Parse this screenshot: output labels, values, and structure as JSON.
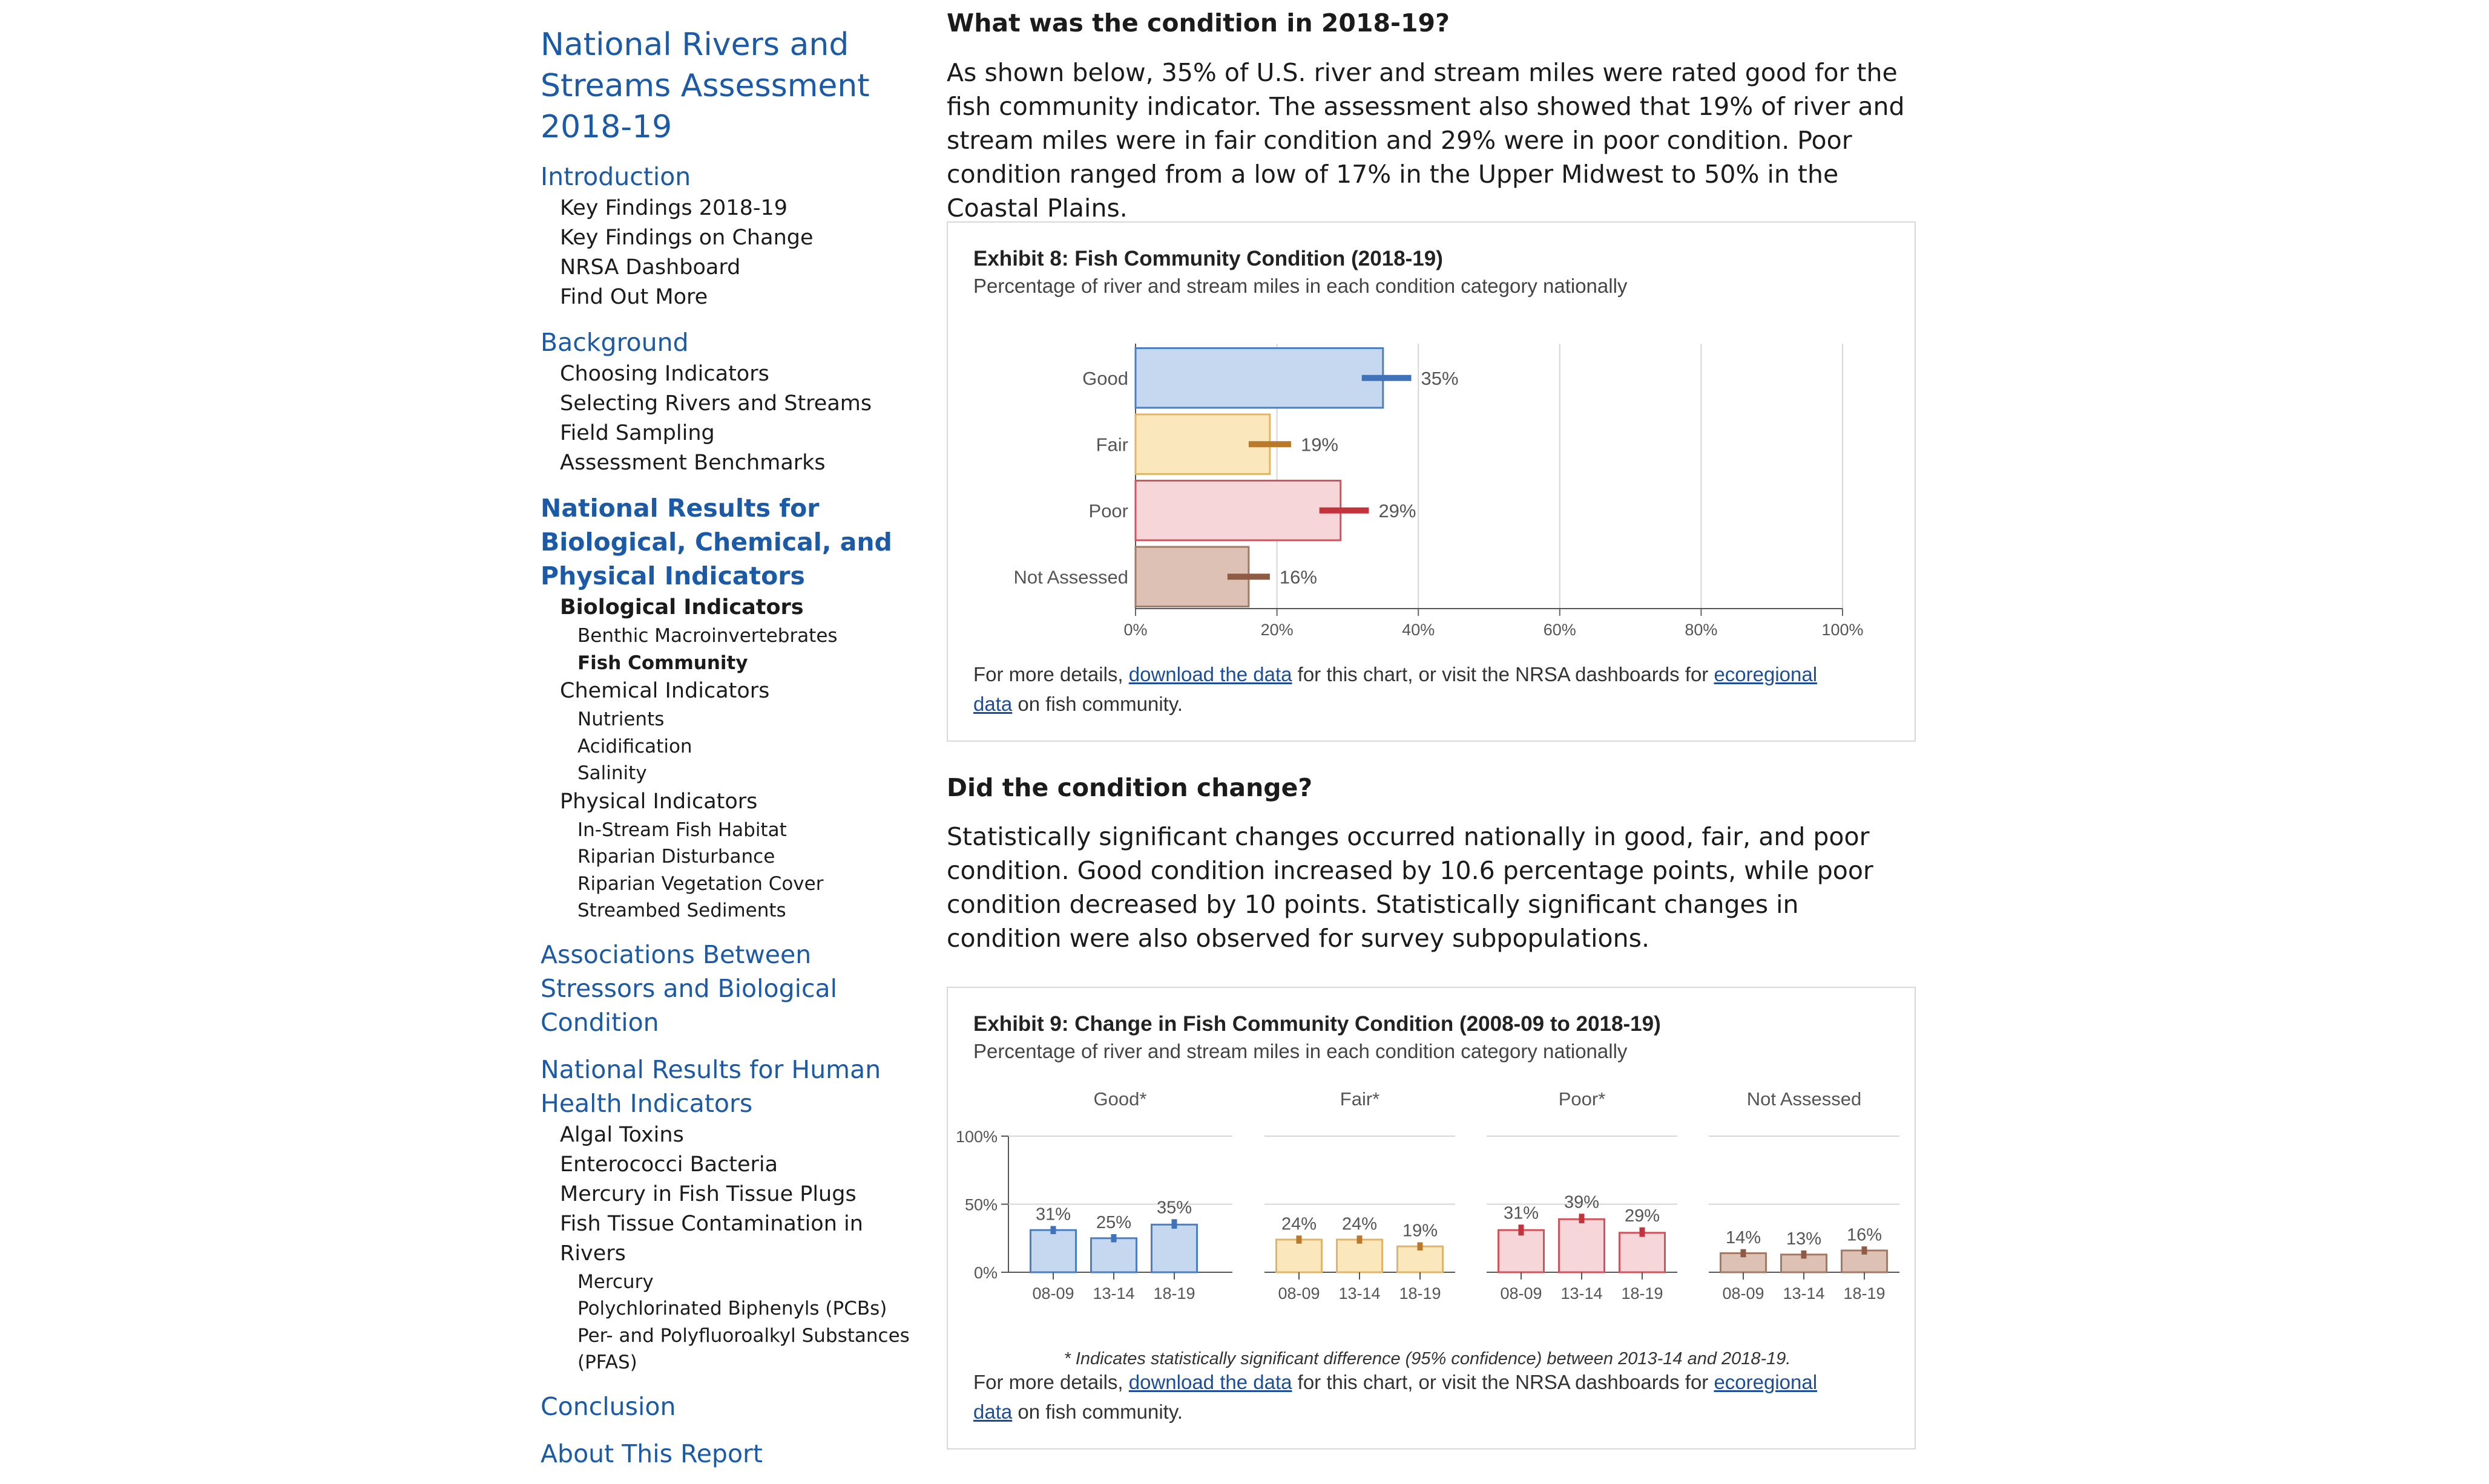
{
  "sidebar": {
    "site_title": "National Rivers and Streams Assessment 2018-19",
    "sections": [
      {
        "label": "Introduction",
        "active": false,
        "items": [
          {
            "label": "Key Findings 2018-19",
            "level": 1
          },
          {
            "label": "Key Findings on Change",
            "level": 1
          },
          {
            "label": "NRSA Dashboard",
            "level": 1
          },
          {
            "label": "Find Out More",
            "level": 1
          }
        ]
      },
      {
        "label": "Background",
        "active": false,
        "items": [
          {
            "label": "Choosing Indicators",
            "level": 1
          },
          {
            "label": "Selecting Rivers and Streams",
            "level": 1
          },
          {
            "label": "Field Sampling",
            "level": 1
          },
          {
            "label": "Assessment Benchmarks",
            "level": 1
          }
        ]
      },
      {
        "label": "National Results for Biological, Chemical, and Physical Indicators",
        "active": true,
        "items": [
          {
            "label": "Biological Indicators",
            "level": 1,
            "active": true
          },
          {
            "label": "Benthic Macroinvertebrates",
            "level": 2
          },
          {
            "label": "Fish Community",
            "level": 2,
            "active": true
          },
          {
            "label": "Chemical Indicators",
            "level": 1
          },
          {
            "label": "Nutrients",
            "level": 2
          },
          {
            "label": "Acidification",
            "level": 2
          },
          {
            "label": "Salinity",
            "level": 2
          },
          {
            "label": "Physical Indicators",
            "level": 1
          },
          {
            "label": "In-Stream Fish Habitat",
            "level": 2
          },
          {
            "label": "Riparian Disturbance",
            "level": 2
          },
          {
            "label": "Riparian Vegetation Cover",
            "level": 2
          },
          {
            "label": "Streambed Sediments",
            "level": 2
          }
        ]
      },
      {
        "label": "Associations Between Stressors and Biological Condition",
        "active": false,
        "items": []
      },
      {
        "label": "National Results for Human Health Indicators",
        "active": false,
        "items": [
          {
            "label": "Algal Toxins",
            "level": 1
          },
          {
            "label": "Enterococci Bacteria",
            "level": 1
          },
          {
            "label": "Mercury in Fish Tissue Plugs",
            "level": 1
          },
          {
            "label": "Fish Tissue Contamination in Rivers",
            "level": 1
          },
          {
            "label": "Mercury",
            "level": 2
          },
          {
            "label": "Polychlorinated Biphenyls (PCBs)",
            "level": 2
          },
          {
            "label": "Per- and Polyfluoroalkyl Substances (PFAS)",
            "level": 2
          }
        ]
      },
      {
        "label": "Conclusion",
        "active": false,
        "items": []
      },
      {
        "label": "About This Report",
        "active": false,
        "items": []
      }
    ]
  },
  "main": {
    "heading_1": "What was the condition in 2018-19?",
    "para_1": "As shown below, 35% of U.S. river and stream miles were rated good for the fish community indicator. The assessment also showed that 19% of river and stream miles were in fair condition and 29% were in poor condition. Poor condition ranged from a low of 17% in the Upper Midwest to 50% in the Coastal Plains.",
    "heading_2": "Did the condition change?",
    "para_2": "Statistically significant changes occurred nationally in good, fair, and poor condition. Good condition increased by 10.6 percentage points, while poor condition decreased by 10 points. Statistically significant changes in condition were also observed for survey subpopulations.",
    "note_before": "For more details, ",
    "note_link_1": "download the data",
    "note_middle": " for this chart, or visit the NRSA dashboards for ",
    "note_link_2a": "ecoregional",
    "note_link_2b": "data",
    "note_after": " on fish community."
  },
  "colors": {
    "good_fill": "#c5d8ef",
    "good_stroke": "#4a7fc1",
    "good_err": "#3f72b8",
    "fair_fill": "#fbe7bc",
    "fair_stroke": "#e0b56a",
    "fair_err": "#b87a2a",
    "poor_fill": "#f6d6d8",
    "poor_stroke": "#d0545c",
    "poor_err": "#c2333b",
    "na_fill": "#dcc1b4",
    "na_stroke": "#a27a66",
    "na_err": "#8f5b44",
    "link": "#1a4e9a",
    "sidebar_link": "#1a5aa6"
  },
  "chart_data": [
    {
      "type": "bar",
      "orientation": "horizontal",
      "title": "Exhibit 8: Fish Community Condition (2018-19)",
      "subtitle": "Percentage of river and stream miles in each condition category nationally",
      "categories": [
        "Good",
        "Fair",
        "Poor",
        "Not Assessed"
      ],
      "values": [
        35,
        19,
        29,
        16
      ],
      "value_labels": [
        "35%",
        "19%",
        "29%",
        "16%"
      ],
      "error_bars": [
        [
          32,
          39
        ],
        [
          16,
          22
        ],
        [
          26,
          33
        ],
        [
          13,
          19
        ]
      ],
      "xlim": [
        0,
        100
      ],
      "xticks": [
        "0%",
        "20%",
        "40%",
        "60%",
        "80%",
        "100%"
      ],
      "grid": true,
      "colors": [
        "good",
        "fair",
        "poor",
        "na"
      ]
    },
    {
      "type": "bar",
      "title": "Exhibit 9: Change in Fish Community Condition (2008-09 to 2018-19)",
      "subtitle": "Percentage of river and stream miles in each condition category nationally",
      "categories": [
        "08-09",
        "13-14",
        "18-19"
      ],
      "ylim": [
        0,
        100
      ],
      "yticks": [
        "0%",
        "50%",
        "100%"
      ],
      "panels": [
        {
          "name": "Good*",
          "color": "good",
          "values": [
            31,
            25,
            35
          ],
          "labels": [
            "31%",
            "25%",
            "35%"
          ],
          "error_bars": [
            [
              28,
              34
            ],
            [
              22,
              28
            ],
            [
              32,
              39
            ]
          ]
        },
        {
          "name": "Fair*",
          "color": "fair",
          "values": [
            24,
            24,
            19
          ],
          "labels": [
            "24%",
            "24%",
            "19%"
          ],
          "error_bars": [
            [
              21,
              27
            ],
            [
              21,
              27
            ],
            [
              16,
              22
            ]
          ]
        },
        {
          "name": "Poor*",
          "color": "poor",
          "values": [
            31,
            39,
            29
          ],
          "labels": [
            "31%",
            "39%",
            "29%"
          ],
          "error_bars": [
            [
              27,
              35
            ],
            [
              36,
              43
            ],
            [
              26,
              33
            ]
          ]
        },
        {
          "name": "Not Assessed",
          "color": "na",
          "values": [
            14,
            13,
            16
          ],
          "labels": [
            "14%",
            "13%",
            "16%"
          ],
          "error_bars": [
            [
              11,
              17
            ],
            [
              10,
              16
            ],
            [
              13,
              19
            ]
          ]
        }
      ],
      "footnote": "* Indicates statistically significant difference (95% confidence) between 2013-14 and 2018-19."
    }
  ]
}
